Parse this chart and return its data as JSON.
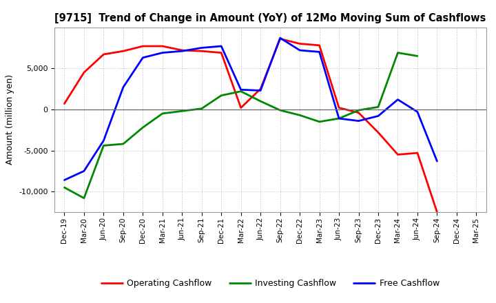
{
  "title": "[9715]  Trend of Change in Amount (YoY) of 12Mo Moving Sum of Cashflows",
  "ylabel": "Amount (million yen)",
  "x_labels": [
    "Dec-19",
    "Mar-20",
    "Jun-20",
    "Sep-20",
    "Dec-20",
    "Mar-21",
    "Jun-21",
    "Sep-21",
    "Dec-21",
    "Mar-22",
    "Jun-22",
    "Sep-22",
    "Dec-22",
    "Mar-23",
    "Jun-23",
    "Sep-23",
    "Dec-23",
    "Mar-24",
    "Jun-24",
    "Sep-24",
    "Dec-24",
    "Mar-25"
  ],
  "operating": [
    700,
    4500,
    6700,
    7100,
    7700,
    7700,
    7200,
    7100,
    6900,
    200,
    2500,
    8600,
    8000,
    7800,
    200,
    -400,
    -2800,
    -5500,
    -5300,
    -12500,
    null,
    null
  ],
  "investing": [
    -9500,
    -10800,
    -4400,
    -4200,
    -2200,
    -500,
    -200,
    100,
    1700,
    2200,
    1000,
    -100,
    -700,
    -1500,
    -1100,
    -100,
    300,
    6900,
    6500,
    null,
    null,
    null
  ],
  "free": [
    -8600,
    -7500,
    -3800,
    2700,
    6300,
    6900,
    7100,
    7500,
    7700,
    2400,
    2300,
    8700,
    7200,
    7000,
    -1100,
    -1400,
    -800,
    1200,
    -300,
    -6300,
    null,
    null
  ],
  "colors": {
    "operating": "#ff0000",
    "investing": "#008800",
    "free": "#0000ff"
  },
  "ylim": [
    -12500,
    10000
  ],
  "yticks": [
    -10000,
    -5000,
    0,
    5000
  ],
  "line_width": 2.0,
  "background_color": "#ffffff",
  "grid_color": "#bbbbbb"
}
